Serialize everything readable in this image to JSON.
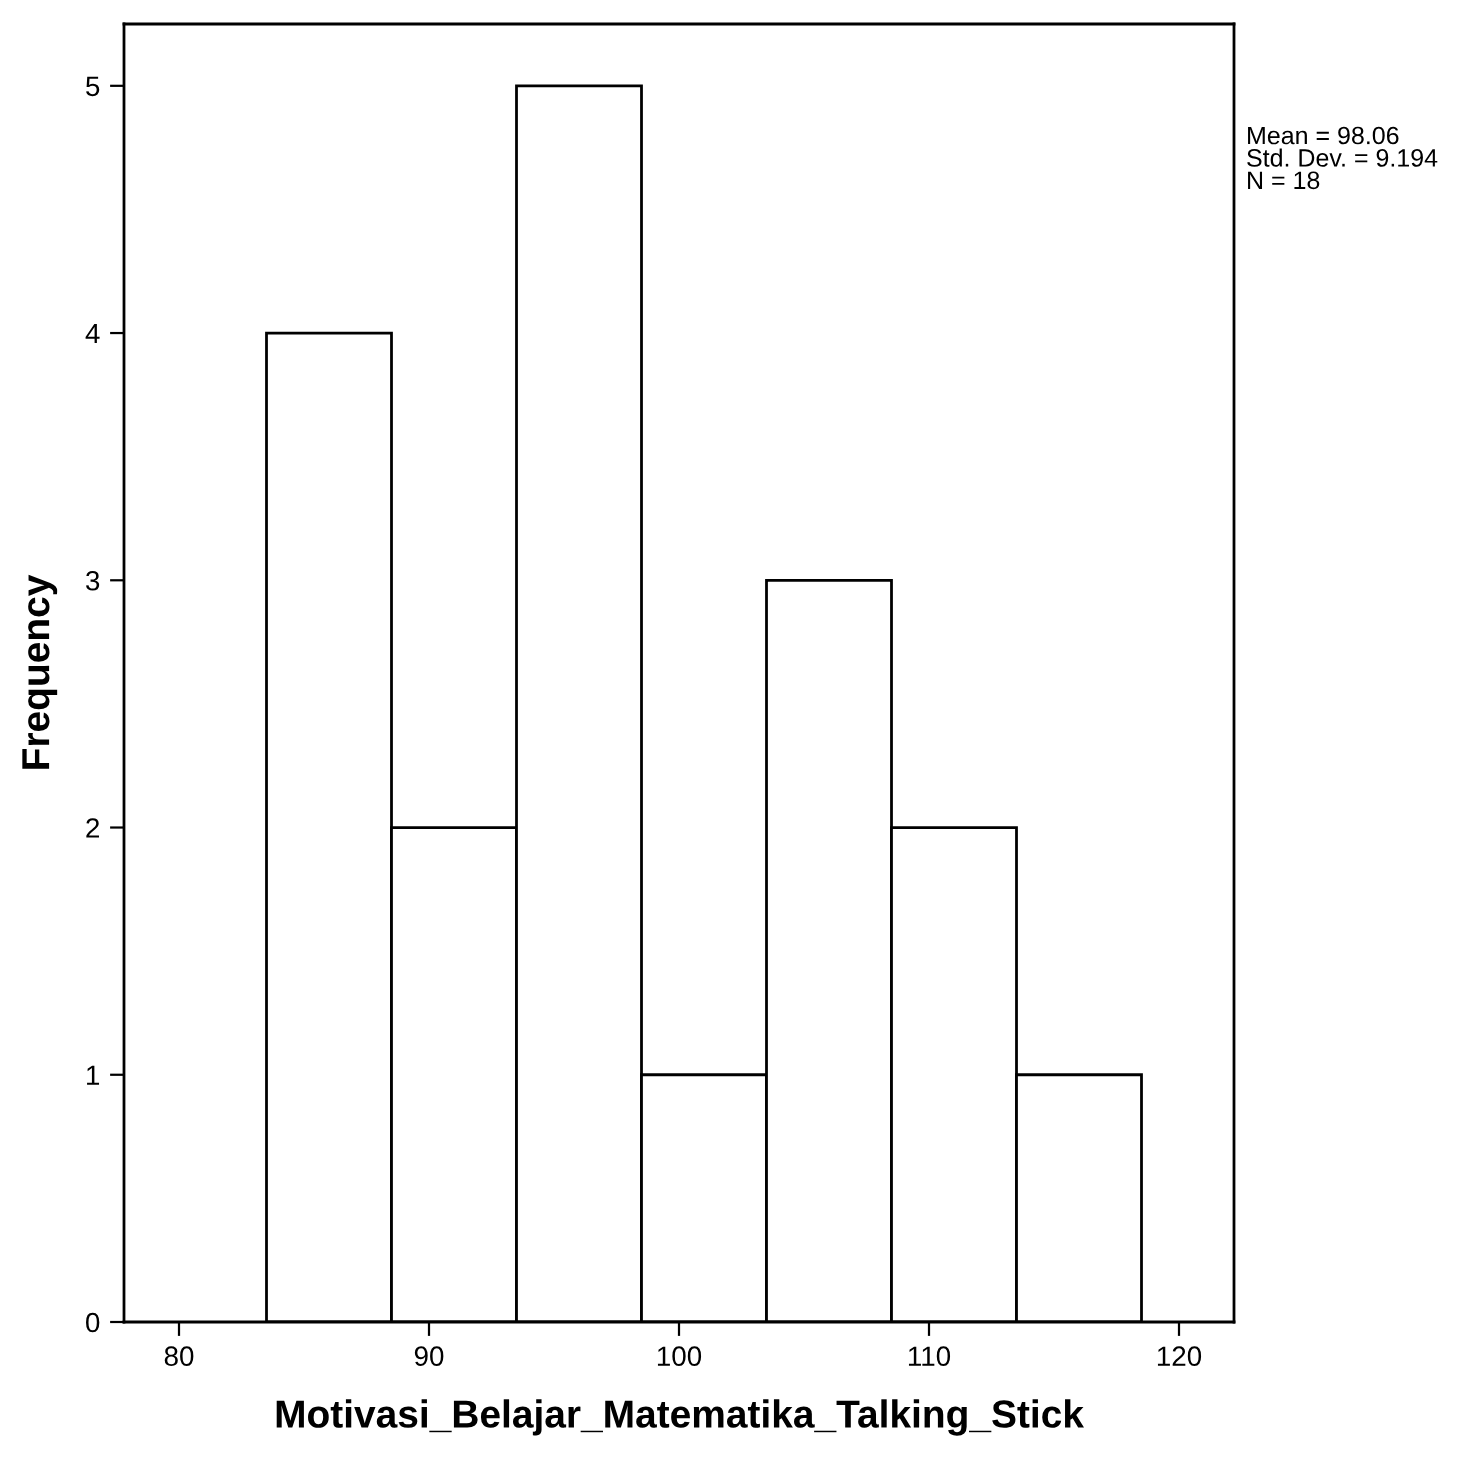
{
  "chart_data": {
    "type": "histogram",
    "xlabel": "Motivasi_Belajar_Matematika_Talking_Stick",
    "ylabel": "Frequency",
    "bins": [
      83.5,
      88.5,
      93.5,
      98.5,
      103.5,
      108.5,
      113.5,
      118.5
    ],
    "values": [
      4,
      2,
      5,
      1,
      3,
      2,
      1
    ],
    "color": "#ffffff",
    "xlim": [
      77.8,
      122.2
    ],
    "xticks": [
      80,
      90,
      100,
      110,
      120
    ],
    "ylim": [
      0,
      5.25
    ],
    "yticks": [
      0,
      1,
      2,
      3,
      4,
      5
    ],
    "grid": false,
    "annotations": [
      "Mean = 98.06\nStd. Dev. = 9.194\nN = 18"
    ]
  }
}
